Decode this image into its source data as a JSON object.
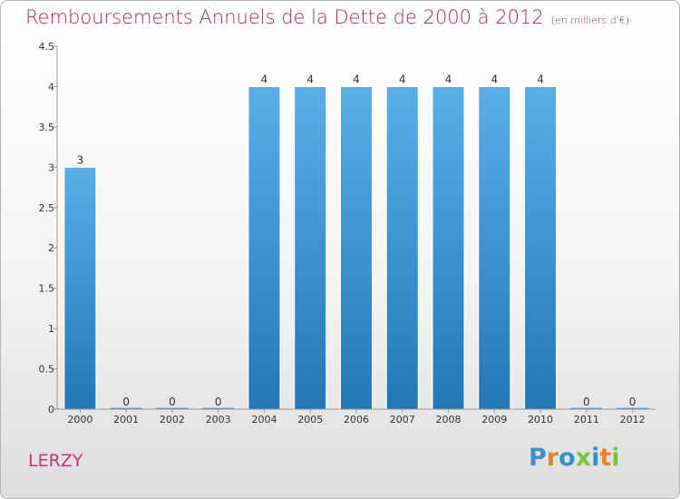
{
  "header": {
    "title": "Remboursements Annuels de la Dette de 2000 à 2012",
    "unit": "(en milliers d'€)"
  },
  "commune": "LERZY",
  "logo": {
    "letters": [
      {
        "ch": "P",
        "color": "#3a8fd0"
      },
      {
        "ch": "r",
        "color": "#e8832a"
      },
      {
        "ch": "o",
        "color": "#3a8fd0"
      },
      {
        "ch": "x",
        "color": "#7cc242"
      },
      {
        "ch": "i",
        "color": "#3a8fd0"
      },
      {
        "ch": "t",
        "color": "#e8832a"
      },
      {
        "ch": "i",
        "color": "#7cc242"
      }
    ]
  },
  "chart_data": {
    "type": "bar",
    "title": "Remboursements Annuels de la Dette de 2000 à 2012",
    "categories": [
      "2000",
      "2001",
      "2002",
      "2003",
      "2004",
      "2005",
      "2006",
      "2007",
      "2008",
      "2009",
      "2010",
      "2011",
      "2012"
    ],
    "values": [
      3,
      0,
      0,
      0,
      4,
      4,
      4,
      4,
      4,
      4,
      4,
      0,
      0
    ],
    "data_labels": [
      "3",
      "0",
      "0",
      "0",
      "4",
      "4",
      "4",
      "4",
      "4",
      "4",
      "4",
      "0",
      "0"
    ],
    "yticks": [
      "0",
      "0.5",
      "1",
      "1.5",
      "2",
      "2.5",
      "3",
      "3.5",
      "4",
      "4.5"
    ],
    "ylim": [
      0,
      4.5
    ],
    "bar_color": "#3f9bdc",
    "grid": false
  }
}
